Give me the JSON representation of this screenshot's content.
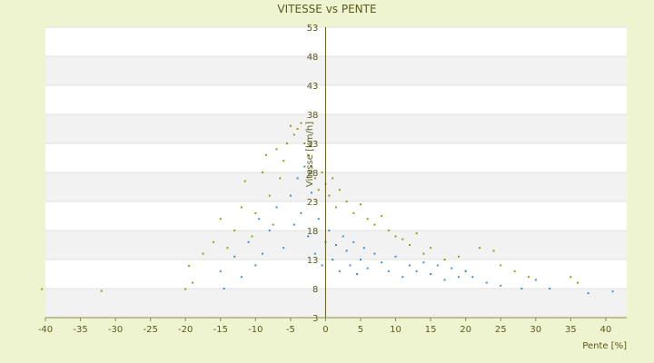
{
  "chart_data": {
    "type": "scatter",
    "title": "VITESSE vs PENTE",
    "xlabel": "Pente [%]",
    "ylabel": "Vitesse [km/h]",
    "xlim": [
      -40,
      43
    ],
    "ylim": [
      3,
      53
    ],
    "x_ticks": [
      -40,
      -35,
      -30,
      -25,
      -20,
      -15,
      -10,
      -5,
      0,
      5,
      10,
      15,
      20,
      25,
      30,
      35,
      40
    ],
    "y_ticks": [
      3,
      8,
      13,
      18,
      23,
      28,
      33,
      38,
      43,
      48,
      53
    ],
    "grid": "horizontal-bands",
    "legend": "none",
    "series_colors": [
      "#9a9a1a",
      "#3a8fd6"
    ],
    "series": [
      {
        "marker_color": "#9a9a1a",
        "points": [
          [
            -40.5,
            7.9
          ],
          [
            -32.0,
            7.6
          ],
          [
            -20.0,
            7.9
          ],
          [
            -19.5,
            11.9
          ],
          [
            -19.0,
            9.0
          ],
          [
            -17.5,
            14.0
          ],
          [
            -16.0,
            16.0
          ],
          [
            -15.0,
            20.0
          ],
          [
            -14.0,
            15.0
          ],
          [
            -13.0,
            18.0
          ],
          [
            -12.0,
            22.0
          ],
          [
            -11.5,
            26.5
          ],
          [
            -10.5,
            17.0
          ],
          [
            -10.0,
            21.0
          ],
          [
            -9.0,
            28.0
          ],
          [
            -8.5,
            31.0
          ],
          [
            -8.0,
            24.0
          ],
          [
            -7.5,
            19.0
          ],
          [
            -7.0,
            32.0
          ],
          [
            -6.5,
            27.0
          ],
          [
            -6.0,
            30.0
          ],
          [
            -5.5,
            33.0
          ],
          [
            -5.0,
            36.0
          ],
          [
            -4.5,
            34.5
          ],
          [
            -4.0,
            35.5
          ],
          [
            -3.5,
            36.5
          ],
          [
            -3.0,
            33.0
          ],
          [
            -2.5,
            31.0
          ],
          [
            -2.0,
            29.0
          ],
          [
            -1.5,
            27.0
          ],
          [
            -1.0,
            25.0
          ],
          [
            -0.5,
            28.0
          ],
          [
            0.0,
            26.0
          ],
          [
            0.5,
            24.0
          ],
          [
            1.0,
            27.0
          ],
          [
            1.5,
            22.0
          ],
          [
            2.0,
            25.0
          ],
          [
            3.0,
            23.0
          ],
          [
            4.0,
            21.0
          ],
          [
            5.0,
            22.5
          ],
          [
            6.0,
            20.0
          ],
          [
            7.0,
            19.0
          ],
          [
            8.0,
            20.5
          ],
          [
            9.0,
            18.0
          ],
          [
            10.0,
            17.0
          ],
          [
            11.0,
            16.5
          ],
          [
            12.0,
            15.5
          ],
          [
            13.0,
            17.5
          ],
          [
            14.0,
            14.0
          ],
          [
            15.0,
            15.0
          ],
          [
            17.0,
            13.0
          ],
          [
            19.0,
            13.5
          ],
          [
            20.0,
            11.0
          ],
          [
            22.0,
            15.0
          ],
          [
            24.0,
            14.5
          ],
          [
            25.0,
            12.0
          ],
          [
            27.0,
            11.0
          ],
          [
            29.0,
            10.0
          ],
          [
            35.0,
            10.0
          ],
          [
            36.0,
            9.0
          ]
        ]
      },
      {
        "marker_color": "#3a8fd6",
        "points": [
          [
            -15.0,
            11.0
          ],
          [
            -14.5,
            8.0
          ],
          [
            -13.0,
            13.5
          ],
          [
            -12.0,
            10.0
          ],
          [
            -11.0,
            16.0
          ],
          [
            -10.0,
            12.0
          ],
          [
            -9.5,
            20.0
          ],
          [
            -9.0,
            14.0
          ],
          [
            -8.0,
            18.0
          ],
          [
            -7.0,
            22.0
          ],
          [
            -6.0,
            15.0
          ],
          [
            -5.0,
            24.0
          ],
          [
            -4.5,
            19.0
          ],
          [
            -4.0,
            27.0
          ],
          [
            -3.5,
            21.0
          ],
          [
            -3.0,
            29.0
          ],
          [
            -2.5,
            17.0
          ],
          [
            -2.0,
            24.5
          ],
          [
            -1.5,
            14.0
          ],
          [
            -1.0,
            20.0
          ],
          [
            -0.5,
            12.0
          ],
          [
            0.0,
            16.0
          ],
          [
            0.5,
            18.0
          ],
          [
            1.0,
            13.0
          ],
          [
            1.5,
            15.5
          ],
          [
            2.0,
            11.0
          ],
          [
            2.5,
            17.0
          ],
          [
            3.0,
            14.5
          ],
          [
            3.5,
            12.0
          ],
          [
            4.0,
            16.0
          ],
          [
            4.5,
            10.5
          ],
          [
            5.0,
            13.0
          ],
          [
            5.5,
            15.0
          ],
          [
            6.0,
            11.5
          ],
          [
            7.0,
            14.0
          ],
          [
            8.0,
            12.5
          ],
          [
            9.0,
            11.0
          ],
          [
            10.0,
            13.5
          ],
          [
            11.0,
            10.0
          ],
          [
            12.0,
            12.0
          ],
          [
            13.0,
            11.0
          ],
          [
            14.0,
            12.5
          ],
          [
            15.0,
            10.5
          ],
          [
            16.0,
            12.0
          ],
          [
            17.0,
            9.5
          ],
          [
            18.0,
            11.5
          ],
          [
            19.0,
            10.0
          ],
          [
            20.0,
            11.0
          ],
          [
            21.0,
            10.0
          ],
          [
            23.0,
            9.0
          ],
          [
            25.0,
            8.5
          ],
          [
            28.0,
            8.0
          ],
          [
            30.0,
            9.5
          ],
          [
            32.0,
            8.0
          ],
          [
            37.5,
            7.2
          ],
          [
            41.0,
            7.5
          ]
        ]
      }
    ]
  }
}
